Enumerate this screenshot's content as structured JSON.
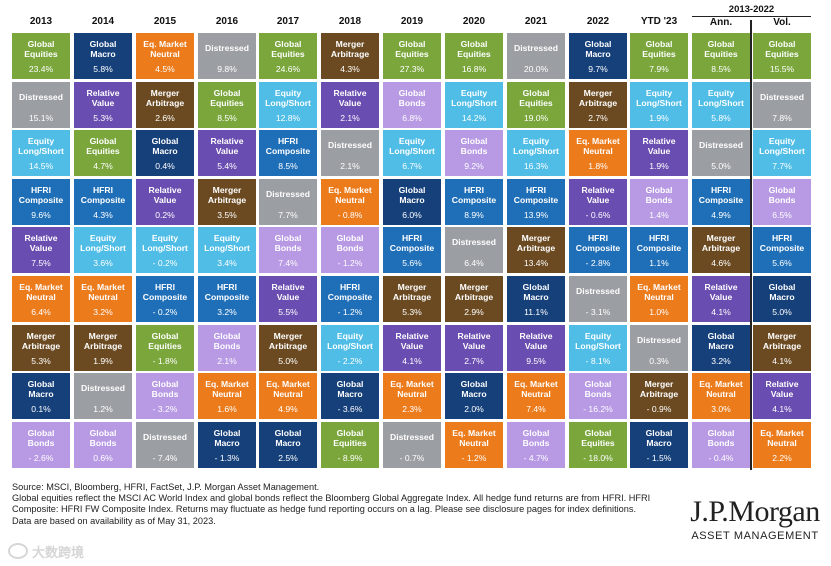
{
  "colors": {
    "Global Equities": "#7aa63c",
    "Global Macro": "#16407a",
    "Eq. Market Neutral": "#ec7b1c",
    "Distressed": "#9b9ea2",
    "Merger Arbitrage": "#6b4a21",
    "Global Bonds": "#b799e4",
    "Equity Long/Short": "#4fbde6",
    "Relative Value": "#6a4db0",
    "HFRI Composite": "#1f6fb8"
  },
  "labels": {
    "Global Equities": [
      "Global",
      "Equities"
    ],
    "Global Macro": [
      "Global",
      "Macro"
    ],
    "Eq. Market Neutral": [
      "Eq. Market",
      "Neutral"
    ],
    "Distressed": [
      "Distressed"
    ],
    "Merger Arbitrage": [
      "Merger",
      "Arbitrage"
    ],
    "Global Bonds": [
      "Global",
      "Bonds"
    ],
    "Equity Long/Short": [
      "Equity",
      "Long/Short"
    ],
    "Relative Value": [
      "Relative",
      "Value"
    ],
    "HFRI Composite": [
      "HFRI",
      "Composite"
    ]
  },
  "group_header": "2013-2022",
  "chart_data": {
    "type": "table",
    "columns": [
      {
        "header": "2013",
        "cells": [
          {
            "name": "Global Equities",
            "value": "23.4%"
          },
          {
            "name": "Distressed",
            "value": "15.1%"
          },
          {
            "name": "Equity Long/Short",
            "value": "14.5%"
          },
          {
            "name": "HFRI Composite",
            "value": "9.6%"
          },
          {
            "name": "Relative Value",
            "value": "7.5%"
          },
          {
            "name": "Eq. Market Neutral",
            "value": "6.4%"
          },
          {
            "name": "Merger Arbitrage",
            "value": "5.3%"
          },
          {
            "name": "Global Macro",
            "value": "0.1%"
          },
          {
            "name": "Global Bonds",
            "value": "- 2.6%"
          }
        ]
      },
      {
        "header": "2014",
        "cells": [
          {
            "name": "Global Macro",
            "value": "5.8%"
          },
          {
            "name": "Relative Value",
            "value": "5.3%"
          },
          {
            "name": "Global Equities",
            "value": "4.7%"
          },
          {
            "name": "HFRI Composite",
            "value": "4.3%"
          },
          {
            "name": "Equity Long/Short",
            "value": "3.6%"
          },
          {
            "name": "Eq. Market Neutral",
            "value": "3.2%"
          },
          {
            "name": "Merger Arbitrage",
            "value": "1.9%"
          },
          {
            "name": "Distressed",
            "value": "1.2%"
          },
          {
            "name": "Global Bonds",
            "value": "0.6%"
          }
        ]
      },
      {
        "header": "2015",
        "cells": [
          {
            "name": "Eq. Market Neutral",
            "value": "4.5%"
          },
          {
            "name": "Merger Arbitrage",
            "value": "2.6%"
          },
          {
            "name": "Global Macro",
            "value": "0.4%"
          },
          {
            "name": "Relative Value",
            "value": "0.2%"
          },
          {
            "name": "Equity Long/Short",
            "value": "- 0.2%"
          },
          {
            "name": "HFRI Composite",
            "value": "- 0.2%"
          },
          {
            "name": "Global Equities",
            "value": "- 1.8%"
          },
          {
            "name": "Global Bonds",
            "value": "- 3.2%"
          },
          {
            "name": "Distressed",
            "value": "- 7.4%"
          }
        ]
      },
      {
        "header": "2016",
        "cells": [
          {
            "name": "Distressed",
            "value": "9.8%"
          },
          {
            "name": "Global Equities",
            "value": "8.5%"
          },
          {
            "name": "Relative Value",
            "value": "5.4%"
          },
          {
            "name": "Merger Arbitrage",
            "value": "3.5%"
          },
          {
            "name": "Equity Long/Short",
            "value": "3.4%"
          },
          {
            "name": "HFRI Composite",
            "value": "3.2%"
          },
          {
            "name": "Global Bonds",
            "value": "2.1%"
          },
          {
            "name": "Eq. Market Neutral",
            "value": "1.6%"
          },
          {
            "name": "Global Macro",
            "value": "- 1.3%"
          }
        ]
      },
      {
        "header": "2017",
        "cells": [
          {
            "name": "Global Equities",
            "value": "24.6%"
          },
          {
            "name": "Equity Long/Short",
            "value": "12.8%"
          },
          {
            "name": "HFRI Composite",
            "value": "8.5%"
          },
          {
            "name": "Distressed",
            "value": "7.7%"
          },
          {
            "name": "Global Bonds",
            "value": "7.4%"
          },
          {
            "name": "Relative Value",
            "value": "5.5%"
          },
          {
            "name": "Merger Arbitrage",
            "value": "5.0%"
          },
          {
            "name": "Eq. Market Neutral",
            "value": "4.9%"
          },
          {
            "name": "Global Macro",
            "value": "2.5%"
          }
        ]
      },
      {
        "header": "2018",
        "cells": [
          {
            "name": "Merger Arbitrage",
            "value": "4.3%"
          },
          {
            "name": "Relative Value",
            "value": "2.1%"
          },
          {
            "name": "Distressed",
            "value": "2.1%"
          },
          {
            "name": "Eq. Market Neutral",
            "value": "- 0.8%"
          },
          {
            "name": "Global Bonds",
            "value": "- 1.2%"
          },
          {
            "name": "HFRI Composite",
            "value": "- 1.2%"
          },
          {
            "name": "Equity Long/Short",
            "value": "- 2.2%"
          },
          {
            "name": "Global Macro",
            "value": "- 3.6%"
          },
          {
            "name": "Global Equities",
            "value": "- 8.9%"
          }
        ]
      },
      {
        "header": "2019",
        "cells": [
          {
            "name": "Global Equities",
            "value": "27.3%"
          },
          {
            "name": "Global Bonds",
            "value": "6.8%"
          },
          {
            "name": "Equity Long/Short",
            "value": "6.7%"
          },
          {
            "name": "Global Macro",
            "value": "6.0%"
          },
          {
            "name": "HFRI Composite",
            "value": "5.6%"
          },
          {
            "name": "Merger Arbitrage",
            "value": "5.3%"
          },
          {
            "name": "Relative Value",
            "value": "4.1%"
          },
          {
            "name": "Eq. Market Neutral",
            "value": "2.3%"
          },
          {
            "name": "Distressed",
            "value": "- 0.7%"
          }
        ]
      },
      {
        "header": "2020",
        "cells": [
          {
            "name": "Global Equities",
            "value": "16.8%"
          },
          {
            "name": "Equity Long/Short",
            "value": "14.2%"
          },
          {
            "name": "Global Bonds",
            "value": "9.2%"
          },
          {
            "name": "HFRI Composite",
            "value": "8.9%"
          },
          {
            "name": "Distressed",
            "value": "6.4%"
          },
          {
            "name": "Merger Arbitrage",
            "value": "2.9%"
          },
          {
            "name": "Relative Value",
            "value": "2.7%"
          },
          {
            "name": "Global Macro",
            "value": "2.0%"
          },
          {
            "name": "Eq. Market Neutral",
            "value": "- 1.2%"
          }
        ]
      },
      {
        "header": "2021",
        "cells": [
          {
            "name": "Distressed",
            "value": "20.0%"
          },
          {
            "name": "Global Equities",
            "value": "19.0%"
          },
          {
            "name": "Equity Long/Short",
            "value": "16.3%"
          },
          {
            "name": "HFRI Composite",
            "value": "13.9%"
          },
          {
            "name": "Merger Arbitrage",
            "value": "13.4%"
          },
          {
            "name": "Global Macro",
            "value": "11.1%"
          },
          {
            "name": "Relative Value",
            "value": "9.5%"
          },
          {
            "name": "Eq. Market Neutral",
            "value": "7.4%"
          },
          {
            "name": "Global Bonds",
            "value": "- 4.7%"
          }
        ]
      },
      {
        "header": "2022",
        "cells": [
          {
            "name": "Global Macro",
            "value": "9.7%"
          },
          {
            "name": "Merger Arbitrage",
            "value": "2.7%"
          },
          {
            "name": "Eq. Market Neutral",
            "value": "1.8%"
          },
          {
            "name": "Relative Value",
            "value": "- 0.6%"
          },
          {
            "name": "HFRI Composite",
            "value": "- 2.8%"
          },
          {
            "name": "Distressed",
            "value": "- 3.1%"
          },
          {
            "name": "Equity Long/Short",
            "value": "- 8.1%"
          },
          {
            "name": "Global Bonds",
            "value": "- 16.2%"
          },
          {
            "name": "Global Equities",
            "value": "- 18.0%"
          }
        ]
      },
      {
        "header": "YTD '23",
        "cells": [
          {
            "name": "Global Equities",
            "value": "7.9%"
          },
          {
            "name": "Equity Long/Short",
            "value": "1.9%"
          },
          {
            "name": "Relative Value",
            "value": "1.9%"
          },
          {
            "name": "Global Bonds",
            "value": "1.4%"
          },
          {
            "name": "HFRI Composite",
            "value": "1.1%"
          },
          {
            "name": "Eq. Market Neutral",
            "value": "1.0%"
          },
          {
            "name": "Distressed",
            "value": "0.3%"
          },
          {
            "name": "Merger Arbitrage",
            "value": "- 0.9%"
          },
          {
            "name": "Global Macro",
            "value": "- 1.5%"
          }
        ]
      },
      {
        "header": "Ann.",
        "cells": [
          {
            "name": "Global Equities",
            "value": "8.5%"
          },
          {
            "name": "Equity Long/Short",
            "value": "5.8%"
          },
          {
            "name": "Distressed",
            "value": "5.0%"
          },
          {
            "name": "HFRI Composite",
            "value": "4.9%"
          },
          {
            "name": "Merger Arbitrage",
            "value": "4.6%"
          },
          {
            "name": "Relative Value",
            "value": "4.1%"
          },
          {
            "name": "Global Macro",
            "value": "3.2%"
          },
          {
            "name": "Eq. Market Neutral",
            "value": "3.0%"
          },
          {
            "name": "Global Bonds",
            "value": "- 0.4%"
          }
        ]
      },
      {
        "header": "Vol.",
        "cells": [
          {
            "name": "Global Equities",
            "value": "15.5%"
          },
          {
            "name": "Distressed",
            "value": "7.8%"
          },
          {
            "name": "Equity Long/Short",
            "value": "7.7%"
          },
          {
            "name": "Global Bonds",
            "value": "6.5%"
          },
          {
            "name": "HFRI Composite",
            "value": "5.6%"
          },
          {
            "name": "Global Macro",
            "value": "5.0%"
          },
          {
            "name": "Merger Arbitrage",
            "value": "4.1%"
          },
          {
            "name": "Relative Value",
            "value": "4.1%"
          },
          {
            "name": "Eq. Market Neutral",
            "value": "2.2%"
          }
        ]
      }
    ]
  },
  "footnote": [
    "Source: MSCI, Bloomberg, HFRI, FactSet, J.P. Morgan Asset Management.",
    "Global equities reflect the MSCI AC World Index and global bonds reflect the Bloomberg Global Aggregate Index. All hedge fund returns are from HFRI. HFRI Composite: HFRI FW Composite Index. Returns may fluctuate as hedge fund reporting occurs on a lag. Please see disclosure pages for index definitions.",
    "Data are based on availability as of May 31, 2023."
  ],
  "logo": {
    "main": "J.P.Morgan",
    "sub": "ASSET MANAGEMENT"
  },
  "watermark": "大数跨境"
}
